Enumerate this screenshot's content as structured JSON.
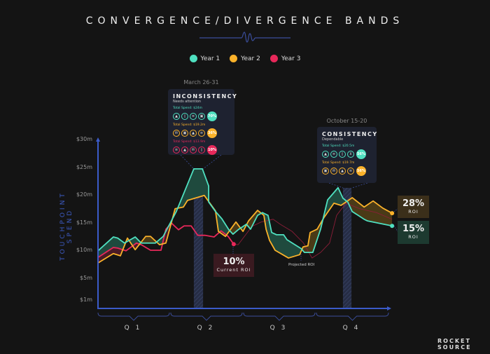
{
  "header": {
    "title": "CONVERGENCE/DIVERGENCE BANDS"
  },
  "legend": [
    {
      "label": "Year 1",
      "color": "#4fe0c0"
    },
    {
      "label": "Year 2",
      "color": "#fbb22a"
    },
    {
      "label": "Year 3",
      "color": "#e8285a"
    }
  ],
  "logo": {
    "line1": "ROCKET",
    "line2": "SOURCE"
  },
  "chart_data": {
    "type": "line",
    "title": "CONVERGENCE/DIVERGENCE BANDS",
    "ylabel": "TOUCHPOINT SPEND",
    "xlabel": "",
    "xunit": "months",
    "xlim": [
      0,
      12
    ],
    "ylim": [
      0,
      30
    ],
    "yticks": [
      {
        "label": "$1m",
        "value": 1
      },
      {
        "label": "$5m",
        "value": 5
      },
      {
        "label": "$10m",
        "value": 10
      },
      {
        "label": "$15m",
        "value": 15
      },
      {
        "label": "$20m",
        "value": 20
      },
      {
        "label": "$25m",
        "value": 25
      },
      {
        "label": "$30m",
        "value": 30
      }
    ],
    "quarters": [
      "Q 1",
      "Q 2",
      "Q 3",
      "Q 4"
    ],
    "series": [
      {
        "name": "Year 1",
        "color": "#4fe0c0",
        "points": [
          [
            0,
            9.9
          ],
          [
            0.63,
            12.4
          ],
          [
            0.81,
            12.2
          ],
          [
            1.09,
            11.3
          ],
          [
            1.53,
            12.4
          ],
          [
            1.78,
            11.3
          ],
          [
            2.36,
            11.3
          ],
          [
            2.68,
            12.5
          ],
          [
            3.22,
            17
          ],
          [
            3.94,
            24.7
          ],
          [
            4.29,
            24.7
          ],
          [
            4.55,
            21.6
          ],
          [
            4.55,
            18.7
          ],
          [
            4.83,
            17
          ],
          [
            5.09,
            15.7
          ],
          [
            5.38,
            13.7
          ],
          [
            5.55,
            12.9
          ],
          [
            5.76,
            13.7
          ],
          [
            6.1,
            14.7
          ],
          [
            6.27,
            13.8
          ],
          [
            6.56,
            16.3
          ],
          [
            6.76,
            16.8
          ],
          [
            6.99,
            16.3
          ],
          [
            7.14,
            13.2
          ],
          [
            7.34,
            12.8
          ],
          [
            7.63,
            12.8
          ],
          [
            7.77,
            11.9
          ],
          [
            8.35,
            10.3
          ],
          [
            8.49,
            9.6
          ],
          [
            8.83,
            9.6
          ],
          [
            9.15,
            13.8
          ],
          [
            9.44,
            19.1
          ],
          [
            9.87,
            21.3
          ],
          [
            10.07,
            19.4
          ],
          [
            10.27,
            18.7
          ],
          [
            10.45,
            17
          ],
          [
            10.94,
            15.6
          ],
          [
            11.08,
            15.3
          ],
          [
            12.09,
            14.4
          ]
        ]
      },
      {
        "name": "Year 2",
        "color": "#fbb22a",
        "points": [
          [
            0,
            7.7
          ],
          [
            0.63,
            9.4
          ],
          [
            0.92,
            9
          ],
          [
            1.21,
            12.2
          ],
          [
            1.53,
            10.1
          ],
          [
            1.96,
            12.5
          ],
          [
            2.16,
            12.5
          ],
          [
            2.53,
            11
          ],
          [
            2.79,
            11.3
          ],
          [
            3.17,
            17.5
          ],
          [
            3.51,
            17.8
          ],
          [
            3.68,
            19
          ],
          [
            4.37,
            19.9
          ],
          [
            4.83,
            17.1
          ],
          [
            4.95,
            13.4
          ],
          [
            5.24,
            12.5
          ],
          [
            5.67,
            15.1
          ],
          [
            5.96,
            13.4
          ],
          [
            6.19,
            15.3
          ],
          [
            6.56,
            17.2
          ],
          [
            6.82,
            16.3
          ],
          [
            6.91,
            13.8
          ],
          [
            7.05,
            11.8
          ],
          [
            7.28,
            10
          ],
          [
            7.83,
            8.6
          ],
          [
            8.29,
            9.2
          ],
          [
            8.43,
            10.6
          ],
          [
            8.63,
            10.8
          ],
          [
            8.72,
            13.2
          ],
          [
            9.01,
            13.8
          ],
          [
            9.29,
            15.9
          ],
          [
            9.7,
            18.5
          ],
          [
            9.99,
            18.1
          ],
          [
            10.45,
            19.5
          ],
          [
            10.94,
            17.8
          ],
          [
            11.31,
            18.9
          ],
          [
            11.71,
            17.6
          ],
          [
            12.09,
            16.7
          ]
        ]
      },
      {
        "name": "Year 3",
        "color": "#e8285a",
        "points": [
          [
            0,
            8.7
          ],
          [
            0.63,
            10.5
          ],
          [
            0.81,
            10.4
          ],
          [
            1.15,
            9.9
          ],
          [
            1.58,
            11.3
          ],
          [
            1.78,
            11
          ],
          [
            2.16,
            10
          ],
          [
            2.59,
            10
          ],
          [
            2.79,
            13.8
          ],
          [
            3.02,
            14.9
          ],
          [
            3.31,
            13.7
          ],
          [
            3.54,
            14.4
          ],
          [
            3.83,
            14.4
          ],
          [
            4.1,
            12.7
          ],
          [
            4.39,
            12.7
          ],
          [
            4.77,
            12.4
          ],
          [
            5.06,
            13.5
          ],
          [
            5.35,
            12.5
          ],
          [
            5.58,
            11.1
          ]
        ]
      },
      {
        "name": "Projected ROI",
        "color": "#8a1e38",
        "points": [
          [
            5.58,
            11.1
          ],
          [
            5.76,
            11
          ],
          [
            6.33,
            14.3
          ],
          [
            6.71,
            15.1
          ],
          [
            7.2,
            15.6
          ],
          [
            7.49,
            14.7
          ],
          [
            7.98,
            13.4
          ],
          [
            8.45,
            11.3
          ],
          [
            8.8,
            8.6
          ],
          [
            9.15,
            9.6
          ],
          [
            9.52,
            11.3
          ],
          [
            9.81,
            16.3
          ],
          [
            10.19,
            18.5
          ],
          [
            10.76,
            17.5
          ],
          [
            11.45,
            16.8
          ],
          [
            12.09,
            15.6
          ]
        ]
      }
    ],
    "highlights": [
      {
        "range": [
          3.94,
          4.32
        ],
        "date": "March 26-31"
      },
      {
        "range": [
          10.07,
          10.42
        ],
        "date": "October 15-20"
      }
    ],
    "annotations": {
      "projected_label": "Projected ROI"
    }
  },
  "tooltips": {
    "left": {
      "date": "March 26-31",
      "title": "INCONSISTENCY",
      "subtitle": "Needs attention",
      "rows": [
        {
          "spend": "Total Spend: $24m",
          "pct": "70%",
          "color": "#4fe0c0",
          "icons": [
            "thumbs-up",
            "phone",
            "document",
            "image"
          ]
        },
        {
          "spend": "Total Spend: $19.2m",
          "pct": "36%",
          "color": "#fbb22a",
          "icons": [
            "mail",
            "image",
            "thumbs-up",
            "document"
          ]
        },
        {
          "spend": "Total Spend: $13.9m",
          "pct": "10%",
          "color": "#e8285a",
          "icons": [
            "document",
            "thumbs-up",
            "mail",
            "phone"
          ]
        }
      ]
    },
    "right": {
      "date": "October 15-20",
      "title": "CONSISTENCY",
      "subtitle": "Dependable",
      "rows": [
        {
          "spend": "Total Spend: $20.5m",
          "pct": "56%",
          "color": "#4fe0c0",
          "icons": [
            "thumbs-up",
            "document",
            "phone",
            "cart"
          ]
        },
        {
          "spend": "Total Spend: $19.7m",
          "pct": "56%",
          "color": "#fbb22a",
          "icons": [
            "image",
            "mail",
            "thumbs-up",
            "document"
          ]
        }
      ]
    }
  },
  "roi": {
    "current": {
      "value": "10%",
      "label": "Current ROI"
    },
    "year2": {
      "value": "28%",
      "label": "ROI"
    },
    "year1": {
      "value": "15%",
      "label": "ROI"
    }
  }
}
